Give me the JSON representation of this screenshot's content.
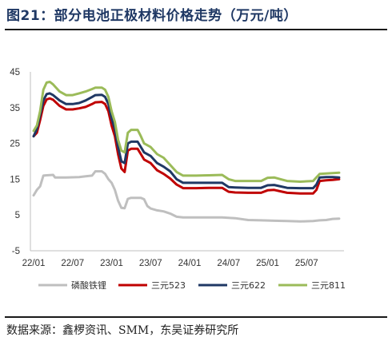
{
  "header": {
    "title": "图21：部分电池正极材料价格走势（万元/吨）"
  },
  "footer": {
    "source": "数据来源：鑫椤资讯、SMM，东吴证券研究所"
  },
  "chart_data": {
    "type": "line",
    "title": "图21：部分电池正极材料价格走势（万元/吨）",
    "xlabel": "",
    "ylabel": "",
    "ylim": [
      -5,
      45
    ],
    "yticks": [
      -5,
      5,
      15,
      25,
      35,
      45
    ],
    "xlim": [
      "2022-01",
      "2025-12"
    ],
    "xticks": [
      {
        "label": "22/01",
        "t": 0
      },
      {
        "label": "22/07",
        "t": 6
      },
      {
        "label": "23/01",
        "t": 12
      },
      {
        "label": "23/07",
        "t": 18
      },
      {
        "label": "24/01",
        "t": 24
      },
      {
        "label": "24/07",
        "t": 30
      },
      {
        "label": "25/01",
        "t": 36
      },
      {
        "label": "25/07",
        "t": 42
      }
    ],
    "grid": false,
    "legend": "bottom",
    "series": [
      {
        "name": "磷酸铁锂",
        "color": "#bfbfbf",
        "points": [
          [
            0,
            10.5
          ],
          [
            0.5,
            12
          ],
          [
            1,
            13
          ],
          [
            1.5,
            16
          ],
          [
            2,
            16.1
          ],
          [
            3,
            16.2
          ],
          [
            3.3,
            15.5
          ],
          [
            5,
            15.5
          ],
          [
            7,
            15.6
          ],
          [
            8,
            15.8
          ],
          [
            9,
            16
          ],
          [
            9.5,
            17.2
          ],
          [
            10.5,
            17.2
          ],
          [
            11,
            16.5
          ],
          [
            11.5,
            15
          ],
          [
            12,
            14
          ],
          [
            12.5,
            12
          ],
          [
            13,
            9
          ],
          [
            13.5,
            7
          ],
          [
            14,
            6.9
          ],
          [
            14.5,
            9.5
          ],
          [
            15,
            9.8
          ],
          [
            16.5,
            9.8
          ],
          [
            17,
            9.4
          ],
          [
            17.5,
            7.5
          ],
          [
            18,
            6.8
          ],
          [
            19,
            6.3
          ],
          [
            20,
            6
          ],
          [
            21,
            5.4
          ],
          [
            22,
            4.5
          ],
          [
            23,
            4.3
          ],
          [
            25,
            4.3
          ],
          [
            27,
            4.3
          ],
          [
            29,
            4.3
          ],
          [
            31,
            4.1
          ],
          [
            33,
            3.6
          ],
          [
            35,
            3.5
          ],
          [
            37,
            3.4
          ],
          [
            39,
            3.3
          ],
          [
            41,
            3.2
          ],
          [
            43,
            3.3
          ],
          [
            44,
            3.5
          ],
          [
            45,
            3.6
          ],
          [
            46,
            3.9
          ],
          [
            47,
            4
          ]
        ]
      },
      {
        "name": "三元523",
        "color": "#c00000",
        "points": [
          [
            0,
            27
          ],
          [
            0.5,
            28
          ],
          [
            1,
            31.5
          ],
          [
            1.5,
            35.5
          ],
          [
            2,
            37.3
          ],
          [
            2.5,
            37.6
          ],
          [
            3,
            37.2
          ],
          [
            4,
            35.5
          ],
          [
            5,
            34.5
          ],
          [
            6,
            34.5
          ],
          [
            7,
            34.8
          ],
          [
            8,
            35.2
          ],
          [
            9,
            36
          ],
          [
            9.5,
            36.5
          ],
          [
            10.5,
            36.6
          ],
          [
            11,
            36
          ],
          [
            11.5,
            34
          ],
          [
            12,
            30
          ],
          [
            12.5,
            27
          ],
          [
            13,
            22
          ],
          [
            13.5,
            18
          ],
          [
            14,
            17
          ],
          [
            14.5,
            23
          ],
          [
            15,
            23.5
          ],
          [
            16,
            23.5
          ],
          [
            16.5,
            22
          ],
          [
            17,
            20.5
          ],
          [
            18,
            19.5
          ],
          [
            19,
            17.5
          ],
          [
            20,
            16.5
          ],
          [
            21,
            15.2
          ],
          [
            22,
            13.5
          ],
          [
            23,
            12.5
          ],
          [
            25,
            12.5
          ],
          [
            27,
            12.6
          ],
          [
            29,
            12.6
          ],
          [
            30,
            11.5
          ],
          [
            31,
            11.3
          ],
          [
            33,
            11.2
          ],
          [
            35,
            11.2
          ],
          [
            36,
            11.9
          ],
          [
            37,
            12
          ],
          [
            38,
            11.6
          ],
          [
            39,
            11.2
          ],
          [
            41,
            11
          ],
          [
            43,
            11
          ],
          [
            43.5,
            12
          ],
          [
            44,
            14.5
          ],
          [
            45,
            14.7
          ],
          [
            46,
            14.8
          ],
          [
            47,
            15
          ]
        ]
      },
      {
        "name": "三元622",
        "color": "#1f3864",
        "points": [
          [
            0,
            27
          ],
          [
            0.5,
            29
          ],
          [
            1,
            33
          ],
          [
            1.5,
            37
          ],
          [
            2,
            38.8
          ],
          [
            2.5,
            39
          ],
          [
            3,
            38.5
          ],
          [
            4,
            37
          ],
          [
            5,
            36
          ],
          [
            6,
            36
          ],
          [
            7,
            36.3
          ],
          [
            8,
            37
          ],
          [
            9,
            38
          ],
          [
            9.5,
            38.5
          ],
          [
            10.5,
            38.6
          ],
          [
            11,
            38
          ],
          [
            11.5,
            36
          ],
          [
            12,
            32
          ],
          [
            12.5,
            29
          ],
          [
            13,
            24
          ],
          [
            13.5,
            20
          ],
          [
            14,
            19.5
          ],
          [
            14.5,
            25
          ],
          [
            15,
            25.5
          ],
          [
            16,
            25.5
          ],
          [
            16.5,
            24
          ],
          [
            17,
            22.5
          ],
          [
            18,
            21.5
          ],
          [
            19,
            19.5
          ],
          [
            20,
            18.5
          ],
          [
            21,
            17.2
          ],
          [
            22,
            15
          ],
          [
            23,
            14
          ],
          [
            25,
            14
          ],
          [
            27,
            14
          ],
          [
            29,
            14
          ],
          [
            30,
            12.8
          ],
          [
            31,
            12.7
          ],
          [
            33,
            12.6
          ],
          [
            35,
            12.6
          ],
          [
            36,
            13.3
          ],
          [
            37,
            13.4
          ],
          [
            38,
            13
          ],
          [
            39,
            12.6
          ],
          [
            41,
            12.5
          ],
          [
            43,
            12.5
          ],
          [
            43.5,
            13.5
          ],
          [
            44,
            15.5
          ],
          [
            45,
            15.6
          ],
          [
            46,
            15.6
          ],
          [
            47,
            15.5
          ]
        ]
      },
      {
        "name": "三元811",
        "color": "#9bbb59",
        "points": [
          [
            0,
            28.5
          ],
          [
            0.5,
            30
          ],
          [
            1,
            34
          ],
          [
            1.5,
            40
          ],
          [
            2,
            42
          ],
          [
            2.5,
            42.2
          ],
          [
            3,
            41.5
          ],
          [
            4,
            39.5
          ],
          [
            5,
            38.5
          ],
          [
            6,
            38.5
          ],
          [
            7,
            39
          ],
          [
            8,
            39.5
          ],
          [
            9,
            40.2
          ],
          [
            9.5,
            40.6
          ],
          [
            10.5,
            40.6
          ],
          [
            11,
            40
          ],
          [
            11.5,
            38
          ],
          [
            12,
            34
          ],
          [
            12.5,
            31
          ],
          [
            13,
            26
          ],
          [
            13.5,
            23
          ],
          [
            14,
            22.5
          ],
          [
            14.5,
            28
          ],
          [
            15,
            28.8
          ],
          [
            16,
            28.8
          ],
          [
            16.5,
            27
          ],
          [
            17,
            25
          ],
          [
            18,
            24
          ],
          [
            19,
            22
          ],
          [
            20,
            21
          ],
          [
            21,
            19
          ],
          [
            22,
            17
          ],
          [
            23,
            16
          ],
          [
            25,
            16
          ],
          [
            27,
            16.1
          ],
          [
            29,
            16.2
          ],
          [
            30,
            15
          ],
          [
            31,
            14.5
          ],
          [
            33,
            14.5
          ],
          [
            35,
            14.5
          ],
          [
            36,
            15.4
          ],
          [
            37,
            15.5
          ],
          [
            38,
            15
          ],
          [
            39,
            14.5
          ],
          [
            41,
            14.3
          ],
          [
            43,
            14.5
          ],
          [
            43.5,
            15.5
          ],
          [
            44,
            16.5
          ],
          [
            45,
            16.6
          ],
          [
            46,
            16.7
          ],
          [
            47,
            16.8
          ]
        ]
      }
    ]
  }
}
